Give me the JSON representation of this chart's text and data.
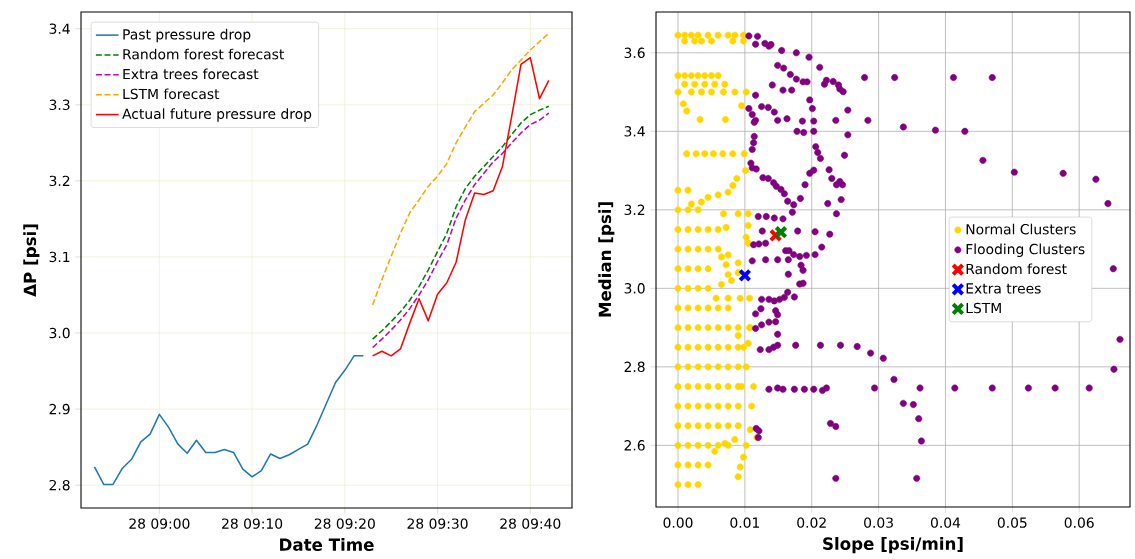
{
  "chart_data": [
    {
      "type": "line",
      "xlabel": "Date Time",
      "ylabel": "ΔP [psi]",
      "ylim": [
        2.77,
        3.422
      ],
      "categories": [
        null,
        null,
        null,
        null,
        null,
        null,
        null,
        "28 09:00",
        null,
        null,
        null,
        null,
        null,
        null,
        null,
        null,
        null,
        "28 09:10",
        null,
        null,
        null,
        null,
        null,
        null,
        null,
        null,
        null,
        "28 09:20",
        null,
        null,
        null,
        null,
        null,
        null,
        null,
        null,
        null,
        "28 09:30",
        null,
        null,
        null,
        null,
        null,
        null,
        null,
        null,
        null,
        "28 09:40",
        null,
        null
      ],
      "yticks": [
        2.8,
        2.9,
        {
          "value": 3.0,
          "label": "3.0"
        },
        3.1,
        3.2,
        3.3,
        3.4
      ],
      "grid": true,
      "legend": "top left",
      "series": [
        {
          "name": "Past pressure drop",
          "color": "#1f77b4",
          "line_style": "solid",
          "values": [
            2.824,
            2.801,
            2.801,
            2.822,
            2.834,
            2.857,
            2.867,
            2.893,
            2.876,
            2.854,
            2.842,
            2.859,
            2.843,
            2.843,
            2.847,
            2.843,
            2.821,
            2.811,
            2.819,
            2.841,
            2.835,
            2.84,
            2.847,
            2.854,
            2.879,
            2.907,
            2.935,
            2.951,
            2.97,
            2.97,
            null,
            null,
            null,
            null,
            null,
            null,
            null,
            null,
            null,
            null,
            null,
            null,
            null,
            null,
            null,
            null,
            null,
            null,
            null,
            null
          ]
        },
        {
          "name": "Random forest forecast",
          "color": "#008000",
          "line_style": "dashed",
          "values": [
            null,
            null,
            null,
            null,
            null,
            null,
            null,
            null,
            null,
            null,
            null,
            null,
            null,
            null,
            null,
            null,
            null,
            null,
            null,
            null,
            null,
            null,
            null,
            null,
            null,
            null,
            null,
            null,
            null,
            null,
            2.992,
            3.003,
            3.015,
            3.028,
            3.043,
            3.061,
            3.083,
            3.107,
            3.131,
            3.166,
            3.19,
            3.206,
            3.219,
            3.232,
            3.245,
            3.261,
            3.276,
            3.287,
            3.293,
            3.298
          ]
        },
        {
          "name": "Extra trees forecast",
          "color": "#bf00bf",
          "line_style": "dashed",
          "values": [
            null,
            null,
            null,
            null,
            null,
            null,
            null,
            null,
            null,
            null,
            null,
            null,
            null,
            null,
            null,
            null,
            null,
            null,
            null,
            null,
            null,
            null,
            null,
            null,
            null,
            null,
            null,
            null,
            null,
            null,
            2.981,
            2.992,
            3.004,
            3.017,
            3.032,
            3.05,
            3.07,
            3.094,
            3.116,
            3.151,
            3.175,
            3.195,
            3.21,
            3.225,
            3.236,
            3.25,
            3.263,
            3.274,
            3.28,
            3.289
          ]
        },
        {
          "name": "LSTM forecast",
          "color": "#ffa500",
          "line_style": "dashed",
          "values": [
            null,
            null,
            null,
            null,
            null,
            null,
            null,
            null,
            null,
            null,
            null,
            null,
            null,
            null,
            null,
            null,
            null,
            null,
            null,
            null,
            null,
            null,
            null,
            null,
            null,
            null,
            null,
            null,
            null,
            null,
            3.037,
            3.07,
            3.101,
            3.131,
            3.158,
            3.175,
            3.193,
            3.206,
            3.223,
            3.25,
            3.271,
            3.291,
            3.302,
            3.313,
            3.329,
            3.346,
            3.359,
            3.372,
            3.383,
            3.394
          ]
        },
        {
          "name": "Actual future pressure drop",
          "color": "#ff0000",
          "line_style": "solid",
          "values": [
            null,
            null,
            null,
            null,
            null,
            null,
            null,
            null,
            null,
            null,
            null,
            null,
            null,
            null,
            null,
            null,
            null,
            null,
            null,
            null,
            null,
            null,
            null,
            null,
            null,
            null,
            null,
            null,
            null,
            null,
            2.97,
            2.976,
            2.97,
            2.979,
            3.013,
            3.045,
            3.016,
            3.051,
            3.066,
            3.093,
            3.149,
            3.184,
            3.182,
            3.187,
            3.219,
            3.285,
            3.353,
            3.362,
            3.308,
            3.332
          ]
        }
      ]
    },
    {
      "type": "scatter",
      "xlabel": "Slope [psi/min]",
      "ylabel": "Median [psi]",
      "xlim": [
        -0.00329,
        0.0676
      ],
      "ylim": [
        2.443,
        3.704
      ],
      "xticks": [
        {
          "value": 0,
          "label": "0.00"
        },
        {
          "value": 0.01,
          "label": "0.01"
        },
        {
          "value": 0.02,
          "label": "0.02"
        },
        {
          "value": 0.03,
          "label": "0.03"
        },
        {
          "value": 0.04,
          "label": "0.04"
        },
        {
          "value": 0.05,
          "label": "0.05"
        },
        {
          "value": 0.06,
          "label": "0.06"
        }
      ],
      "yticks": [
        2.6,
        2.8,
        {
          "value": 3.0,
          "label": "3.0"
        },
        3.2,
        3.4,
        3.6
      ],
      "grid": true,
      "legend": "right",
      "series": [
        {
          "name": "Normal Clusters",
          "color": "#ffd700",
          "marker": "circle",
          "x": [
            0,
            0.001,
            0.002,
            0.003,
            0.0045,
            0.006,
            0.0075,
            0.0085,
            0.0098,
            0.001,
            0.0025,
            0.0035,
            0.005,
            0.0082,
            0.0098,
            0,
            0.001,
            0.002,
            0.003,
            0.004,
            0.005,
            0.006,
            0.001,
            0.0025,
            0.004,
            0.0055,
            0.007,
            0,
            0.002,
            0.0035,
            0.005,
            0.0068,
            0.0085,
            0.0102,
            0.0095,
            0.0008,
            0.0013,
            0.0033,
            0.0071,
            0.0013,
            0.0027,
            0.004,
            0.0053,
            0.0067,
            0.0082,
            0.0099,
            0.0101,
            0.0088,
            0.0082,
            0.0075,
            0.006,
            0.0045,
            0.0035,
            0.002,
            0.009,
            0.0105,
            0.0068,
            0.0105,
            0.0072,
            0.0102,
            0.0105,
            0.0075,
            0.0065,
            0.0072,
            0.009,
            0.009,
            0.0075,
            0.008,
            0.0065,
            0.0057,
            0.0075,
            0.0093,
            0.0107,
            0.0107,
            0.009,
            0.0105,
            0,
            0.0015,
            0.003,
            0,
            0.0015,
            0.003,
            0.0045,
            0,
            0.0015,
            0.003,
            0.0045,
            0.006,
            0.0075,
            0,
            0.0015,
            0.003,
            0.0045,
            0.006,
            0.0075,
            0.009,
            0,
            0.0015,
            0.003,
            0.0045,
            0.006,
            0.0075,
            0.009,
            0.011,
            0,
            0.0015,
            0.003,
            0.0045,
            0.006,
            0.0075,
            0.009,
            0.0095,
            0.0113,
            0,
            0.0015,
            0.003,
            0.0045,
            0.006,
            0.0075,
            0.009,
            0.0102,
            0,
            0.0015,
            0.003,
            0.0045,
            0.006,
            0.0075,
            0.009,
            0.0098,
            0,
            0.0015,
            0.003,
            0.0045,
            0.006,
            0.0075,
            0.009,
            0.0108,
            0,
            0.0015,
            0.003,
            0.0045,
            0.006,
            0.0075,
            0,
            0.0015,
            0.003,
            0.0045,
            0,
            0.0015,
            0.003,
            0.0045,
            0,
            0.0015,
            0.003,
            0.0045,
            0.006,
            0,
            0.0015,
            0.003,
            0.0045,
            0.006,
            0,
            0.0015,
            0.003,
            0,
            0.0015,
            0.009,
            0.0093,
            0.0098,
            0.0102,
            0.0108,
            0.0118,
            0.0055,
            0.007,
            0.0085
          ],
          "values": [
            3.645,
            3.645,
            3.645,
            3.645,
            3.645,
            3.645,
            3.645,
            3.645,
            3.645,
            3.63,
            3.63,
            3.63,
            3.63,
            3.63,
            3.63,
            3.542,
            3.542,
            3.542,
            3.542,
            3.542,
            3.542,
            3.542,
            3.52,
            3.52,
            3.52,
            3.52,
            3.52,
            3.5,
            3.5,
            3.5,
            3.5,
            3.5,
            3.5,
            3.5,
            3.465,
            3.47,
            3.452,
            3.43,
            3.43,
            3.343,
            3.343,
            3.343,
            3.343,
            3.343,
            3.343,
            3.343,
            3.3,
            3.28,
            3.262,
            3.245,
            3.238,
            3.232,
            3.22,
            3.215,
            3.19,
            3.19,
            3.19,
            3.16,
            3.155,
            3.13,
            3.115,
            3.085,
            3.08,
            3.06,
            3.065,
            3.04,
            3.035,
            3.02,
            3.01,
            2.975,
            2.975,
            2.975,
            2.975,
            2.9,
            2.88,
            2.86,
            2.5,
            2.5,
            2.5,
            2.55,
            2.55,
            2.55,
            2.55,
            2.6,
            2.6,
            2.6,
            2.6,
            2.6,
            2.6,
            2.65,
            2.65,
            2.65,
            2.65,
            2.65,
            2.65,
            2.65,
            2.7,
            2.7,
            2.7,
            2.7,
            2.7,
            2.7,
            2.7,
            2.7,
            2.75,
            2.75,
            2.75,
            2.75,
            2.75,
            2.75,
            2.75,
            2.75,
            2.75,
            2.8,
            2.8,
            2.8,
            2.8,
            2.8,
            2.8,
            2.8,
            2.8,
            2.85,
            2.85,
            2.85,
            2.85,
            2.85,
            2.85,
            2.85,
            2.85,
            2.9,
            2.9,
            2.9,
            2.9,
            2.9,
            2.9,
            2.9,
            2.9,
            2.95,
            2.95,
            2.95,
            2.95,
            2.95,
            2.95,
            3.0,
            3.0,
            3.0,
            3.0,
            3.05,
            3.05,
            3.05,
            3.05,
            3.1,
            3.1,
            3.1,
            3.1,
            3.1,
            3.15,
            3.15,
            3.15,
            3.15,
            3.15,
            3.2,
            3.2,
            3.2,
            3.25,
            3.25,
            2.52,
            2.545,
            2.57,
            2.6,
            2.64,
            2.62,
            2.585,
            2.605,
            2.615
          ]
        },
        {
          "name": "Flooding Clusters",
          "color": "#800080",
          "marker": "circle",
          "x": [
            0.0106,
            0.0119,
            0.0116,
            0.013,
            0.0136,
            0.0139,
            0.0155,
            0.0177,
            0.0196,
            0.0212,
            0.0149,
            0.0158,
            0.0168,
            0.0177,
            0.0187,
            0.0193,
            0.0219,
            0.0222,
            0.0232,
            0.024,
            0.0247,
            0.0242,
            0.0279,
            0.0324,
            0.0412,
            0.047,
            0.0141,
            0.0157,
            0.017,
            0.0116,
            0.0197,
            0.0201,
            0.0254,
            0.0106,
            0.0111,
            0.0116,
            0.0114,
            0.0125,
            0.0135,
            0.0144,
            0.0149,
            0.0163,
            0.0186,
            0.0203,
            0.0236,
            0.0284,
            0.0178,
            0.0188,
            0.0203,
            0.0254,
            0.0337,
            0.0385,
            0.0429,
            0.0114,
            0.0113,
            0.0111,
            0.0206,
            0.0209,
            0.0213,
            0.0249,
            0.0456,
            0.0109,
            0.0111,
            0.0117,
            0.0203,
            0.0197,
            0.0226,
            0.023,
            0.0237,
            0.0242,
            0.0246,
            0.0503,
            0.0576,
            0.0625,
            0.0643,
            0.0127,
            0.0135,
            0.0143,
            0.0147,
            0.0154,
            0.0159,
            0.0164,
            0.0173,
            0.0183,
            0.019,
            0.0244,
            0.0224,
            0.0171,
            0.0237,
            0.012,
            0.0132,
            0.0144,
            0.0157,
            0.0126,
            0.0179,
            0.0205,
            0.0227,
            0.0113,
            0.0121,
            0.0131,
            0.0161,
            0.0166,
            0.0173,
            0.0182,
            0.0192,
            0.0205,
            0.0215,
            0.0111,
            0.0131,
            0.0149,
            0.0165,
            0.0165,
            0.0184,
            0.0187,
            0.0182,
            0.0187,
            0.0164,
            0.0174,
            0.0159,
            0.0152,
            0.0144,
            0.0136,
            0.0125,
            0.0116,
            0.0124,
            0.0146,
            0.0149,
            0.0116,
            0.0125,
            0.0136,
            0.0146,
            0.0149,
            0.0123,
            0.0136,
            0.0143,
            0.0149,
            0.0176,
            0.0213,
            0.0243,
            0.0268,
            0.0288,
            0.0307,
            0.0323,
            0.0136,
            0.0149,
            0.0157,
            0.0174,
            0.0189,
            0.0203,
            0.0216,
            0.0222,
            0.0294,
            0.0362,
            0.0414,
            0.047,
            0.0524,
            0.0564,
            0.0615,
            0.0652,
            0.0661,
            0.0337,
            0.0352,
            0.036,
            0.0364,
            0.0228,
            0.0236,
            0.0117,
            0.0121,
            0.012,
            0.0236,
            0.0357,
            0.0651
          ],
          "values": [
            3.643,
            3.642,
            3.622,
            3.624,
            3.617,
            3.621,
            3.606,
            3.6,
            3.589,
            3.563,
            3.568,
            3.561,
            3.545,
            3.533,
            3.526,
            3.526,
            3.52,
            3.53,
            3.527,
            3.518,
            3.501,
            3.508,
            3.537,
            3.537,
            3.537,
            3.537,
            3.518,
            3.505,
            3.505,
            3.492,
            3.48,
            3.458,
            3.454,
            3.458,
            3.443,
            3.428,
            3.423,
            3.463,
            3.461,
            3.449,
            3.428,
            3.432,
            3.426,
            3.426,
            3.428,
            3.428,
            3.4,
            3.397,
            3.4,
            3.391,
            3.411,
            3.403,
            3.4,
            3.387,
            3.371,
            3.354,
            3.361,
            3.346,
            3.331,
            3.339,
            3.326,
            3.319,
            3.307,
            3.304,
            3.301,
            3.293,
            3.302,
            3.28,
            3.264,
            3.272,
            3.264,
            3.296,
            3.293,
            3.278,
            3.216,
            3.282,
            3.28,
            3.269,
            3.26,
            3.252,
            3.241,
            3.222,
            3.213,
            3.229,
            3.264,
            3.226,
            3.216,
            3.194,
            3.19,
            3.183,
            3.183,
            3.179,
            3.177,
            3.146,
            3.146,
            3.144,
            3.138,
            3.111,
            3.113,
            3.115,
            3.096,
            3.096,
            3.086,
            3.081,
            3.084,
            3.086,
            3.105,
            3.07,
            3.073,
            3.073,
            3.073,
            3.036,
            3.059,
            3.046,
            3.011,
            3.013,
            2.99,
            2.978,
            2.977,
            2.972,
            2.968,
            2.972,
            2.972,
            2.935,
            2.948,
            2.943,
            2.933,
            2.898,
            2.907,
            2.914,
            2.915,
            2.883,
            2.844,
            2.844,
            2.85,
            2.855,
            2.855,
            2.855,
            2.855,
            2.852,
            2.835,
            2.822,
            2.768,
            2.743,
            2.746,
            2.743,
            2.743,
            2.743,
            2.743,
            2.74,
            2.746,
            2.746,
            2.746,
            2.746,
            2.746,
            2.746,
            2.746,
            2.746,
            2.794,
            2.87,
            2.707,
            2.704,
            2.668,
            2.611,
            2.656,
            2.648,
            2.643,
            2.637,
            2.62,
            2.516,
            2.516,
            3.05
          ]
        },
        {
          "name": "Random forest",
          "color": "#ff0000",
          "marker": "cross",
          "x": [
            0.0146
          ],
          "values": [
            3.135
          ]
        },
        {
          "name": "Extra trees",
          "color": "#0000ff",
          "marker": "cross",
          "x": [
            0.01
          ],
          "values": [
            3.033
          ]
        },
        {
          "name": "LSTM",
          "color": "#008000",
          "marker": "cross",
          "x": [
            0.0154
          ],
          "values": [
            3.143
          ]
        }
      ]
    }
  ]
}
